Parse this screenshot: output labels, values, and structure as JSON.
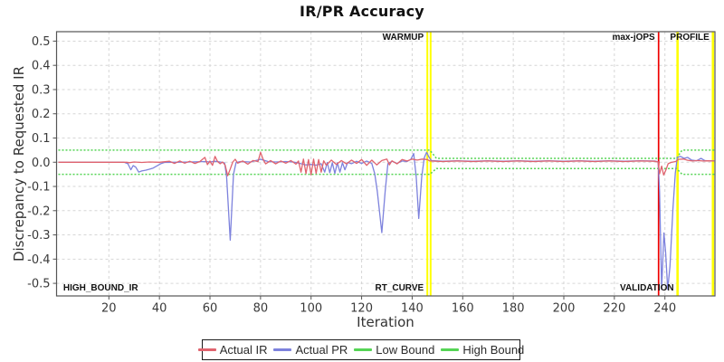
{
  "window": {
    "title": "IR/PR Accuracy"
  },
  "axes": {
    "x_title": "Iteration",
    "y_title": "Discrepancy to Requested IR",
    "x_ticks": [
      20,
      40,
      60,
      80,
      100,
      120,
      140,
      160,
      180,
      200,
      220,
      240
    ],
    "y_ticks": [
      "0.5",
      "0.4",
      "0.3",
      "0.2",
      "0.1",
      "0.0",
      "-0.1",
      "-0.2",
      "-0.3",
      "-0.4",
      "-0.5"
    ]
  },
  "legend": {
    "items": [
      {
        "label": "Actual IR",
        "color": "#e0636e"
      },
      {
        "label": "Actual PR",
        "color": "#7d82dd"
      },
      {
        "label": "Low Bound",
        "color": "#55d455"
      },
      {
        "label": "High Bound",
        "color": "#55d455"
      }
    ]
  },
  "colors": {
    "grid": "#d6d6d6",
    "plot_border": "#555555",
    "marker_yellow": "#ffff00",
    "marker_red": "#ee0000",
    "tick": "#555555"
  },
  "chart_data": {
    "type": "line",
    "title": "IR/PR Accuracy",
    "xlabel": "Iteration",
    "ylabel": "Discrepancy to Requested IR",
    "x_range": [
      -0.7,
      259.8
    ],
    "y_range": [
      -0.552,
      0.539
    ],
    "grid": true,
    "legend_position": "bottom",
    "markers": [
      {
        "name": "warmup-end-line-1",
        "x": 146.0,
        "color": "#ffff00",
        "width": 2.0
      },
      {
        "name": "warmup-end-line-2",
        "x": 147.3,
        "color": "#ffff00",
        "width": 2.0
      },
      {
        "name": "max-jops-line",
        "x": 237.5,
        "color": "#ee0000",
        "width": 1.7
      },
      {
        "name": "profile-start-line",
        "x": 245.0,
        "color": "#ffff00",
        "width": 2.6
      },
      {
        "name": "profile-end-line",
        "x": 259.0,
        "color": "#ffff00",
        "width": 2.6
      }
    ],
    "phases": {
      "top_labels": [
        {
          "text": "WARMUP",
          "x": 146.0,
          "anchor": "end"
        },
        {
          "text": "max-jOPS",
          "x": 237.5,
          "anchor": "end"
        },
        {
          "text": "PROFILE",
          "x": 259.0,
          "anchor": "end"
        }
      ],
      "bottom_labels": [
        {
          "text": "HIGH_BOUND_IR",
          "x": 0.5,
          "anchor": "start"
        },
        {
          "text": "RT_CURVE",
          "x": 146.0,
          "anchor": "end"
        },
        {
          "text": "VALIDATION",
          "x": 245.0,
          "anchor": "end"
        }
      ]
    },
    "series": [
      {
        "name": "High Bound",
        "color": "#55d455",
        "width": 1.5,
        "dash": "2 2",
        "points": [
          [
            0,
            0.05
          ],
          [
            147,
            0.05
          ],
          [
            149.6,
            0.016
          ],
          [
            244.6,
            0.016
          ],
          [
            246.8,
            0.05
          ],
          [
            259.8,
            0.05
          ]
        ]
      },
      {
        "name": "Low Bound",
        "color": "#55d455",
        "width": 1.5,
        "dash": "2 2",
        "points": [
          [
            0,
            -0.05
          ],
          [
            147,
            -0.05
          ],
          [
            149.6,
            -0.026
          ],
          [
            244.6,
            -0.026
          ],
          [
            246.8,
            -0.05
          ],
          [
            259.8,
            -0.05
          ]
        ]
      },
      {
        "name": "Actual PR",
        "color": "#7d82dd",
        "width": 1.3,
        "dash": null,
        "points": [
          [
            0,
            0
          ],
          [
            15,
            0
          ],
          [
            26,
            0
          ],
          [
            27.5,
            -0.006
          ],
          [
            28.7,
            -0.031
          ],
          [
            29.6,
            -0.014
          ],
          [
            30.6,
            -0.02
          ],
          [
            31.8,
            -0.041
          ],
          [
            33,
            -0.036
          ],
          [
            34.5,
            -0.033
          ],
          [
            36,
            -0.029
          ],
          [
            37.5,
            -0.024
          ],
          [
            39,
            -0.015
          ],
          [
            40.5,
            -0.006
          ],
          [
            42,
            -0.001
          ],
          [
            46,
            0
          ],
          [
            52,
            0.001
          ],
          [
            58,
            0.003
          ],
          [
            60,
            0.001
          ],
          [
            62,
            0.004
          ],
          [
            64,
            0.001
          ],
          [
            65.8,
            -0.003
          ],
          [
            66.6,
            -0.06
          ],
          [
            68,
            -0.322
          ],
          [
            69.3,
            -0.05
          ],
          [
            70.3,
            -0.002
          ],
          [
            72,
            0.003
          ],
          [
            76,
            0.001
          ],
          [
            80,
            0.012
          ],
          [
            83,
            0.003
          ],
          [
            86,
            0.001
          ],
          [
            90,
            0.003
          ],
          [
            93,
            0.001
          ],
          [
            96,
            -0.006
          ],
          [
            98,
            -0.011
          ],
          [
            100,
            -0.009
          ],
          [
            102,
            -0.012
          ],
          [
            104,
            -0.006
          ],
          [
            105.4,
            -0.041
          ],
          [
            106.4,
            -0.001
          ],
          [
            107.4,
            -0.043
          ],
          [
            108.4,
            -0.002
          ],
          [
            109.4,
            -0.046
          ],
          [
            110.4,
            -0.002
          ],
          [
            111.4,
            -0.041
          ],
          [
            112.4,
            -0.002
          ],
          [
            113.4,
            -0.031
          ],
          [
            114.5,
            -0.001
          ],
          [
            116,
            -0.006
          ],
          [
            118,
            0.004
          ],
          [
            120,
            -0.005
          ],
          [
            122,
            0.005
          ],
          [
            124,
            -0.005
          ],
          [
            125.2,
            -0.048
          ],
          [
            126.2,
            -0.12
          ],
          [
            128,
            -0.291
          ],
          [
            129.3,
            -0.12
          ],
          [
            130.4,
            -0.006
          ],
          [
            132,
            0.004
          ],
          [
            134,
            -0.005
          ],
          [
            136,
            0.005
          ],
          [
            138,
            0.003
          ],
          [
            139.5,
            0.012
          ],
          [
            140.6,
            0.036
          ],
          [
            141.6,
            -0.06
          ],
          [
            142.6,
            -0.232
          ],
          [
            143.8,
            -0.06
          ],
          [
            144.8,
            0.018
          ],
          [
            145.7,
            0.041
          ],
          [
            146.6,
            0.022
          ],
          [
            147.6,
            0.007
          ],
          [
            152,
            0.004
          ],
          [
            158,
            0.006
          ],
          [
            164,
            0.004
          ],
          [
            170,
            0.006
          ],
          [
            176,
            0.004
          ],
          [
            182,
            0.006
          ],
          [
            188,
            0.004
          ],
          [
            194,
            0.006
          ],
          [
            200,
            0.004
          ],
          [
            206,
            0.006
          ],
          [
            212,
            0.004
          ],
          [
            218,
            0.006
          ],
          [
            224,
            0.004
          ],
          [
            230,
            0.006
          ],
          [
            236,
            0.005
          ],
          [
            237.3,
            0.002
          ],
          [
            237.9,
            -0.12
          ],
          [
            238.7,
            -0.525
          ],
          [
            239.6,
            -0.292
          ],
          [
            240.3,
            -0.372
          ],
          [
            241.1,
            -0.525
          ],
          [
            242,
            -0.43
          ],
          [
            243.2,
            -0.19
          ],
          [
            244.1,
            -0.045
          ],
          [
            244.9,
            0.02
          ],
          [
            246.2,
            0.024
          ],
          [
            247.6,
            0.016
          ],
          [
            249,
            0.02
          ],
          [
            250.6,
            0.009
          ],
          [
            252.5,
            0.006
          ],
          [
            254.3,
            0.016
          ],
          [
            255.8,
            0.007
          ],
          [
            257.5,
            0.005
          ],
          [
            259.5,
            0.006
          ]
        ]
      },
      {
        "name": "Actual IR",
        "color": "#e0636e",
        "width": 1.3,
        "dash": null,
        "points": [
          [
            0,
            0
          ],
          [
            15,
            0
          ],
          [
            27,
            0
          ],
          [
            28,
            -0.002
          ],
          [
            30,
            0.001
          ],
          [
            33,
            -0.001
          ],
          [
            36,
            0.001
          ],
          [
            40,
            0
          ],
          [
            44,
            0.004
          ],
          [
            46,
            -0.005
          ],
          [
            48,
            0.005
          ],
          [
            50,
            -0.004
          ],
          [
            52,
            0.004
          ],
          [
            54,
            -0.005
          ],
          [
            56,
            0.003
          ],
          [
            58,
            0.02
          ],
          [
            59,
            -0.01
          ],
          [
            60,
            0.005
          ],
          [
            61,
            -0.013
          ],
          [
            62,
            0.024
          ],
          [
            63,
            0.003
          ],
          [
            64,
            -0.006
          ],
          [
            65,
            0.001
          ],
          [
            66,
            -0.012
          ],
          [
            67,
            -0.056
          ],
          [
            68,
            -0.028
          ],
          [
            69,
            0.001
          ],
          [
            70,
            0.012
          ],
          [
            71,
            -0.004
          ],
          [
            73,
            0.005
          ],
          [
            75,
            -0.008
          ],
          [
            77,
            0.007
          ],
          [
            79,
            0.003
          ],
          [
            80,
            0.041
          ],
          [
            81,
            0.012
          ],
          [
            82,
            -0.007
          ],
          [
            84,
            0.007
          ],
          [
            86,
            -0.007
          ],
          [
            88,
            0.005
          ],
          [
            90,
            -0.004
          ],
          [
            92,
            0.007
          ],
          [
            94,
            -0.008
          ],
          [
            95,
            0.005
          ],
          [
            96,
            -0.041
          ],
          [
            97,
            0.013
          ],
          [
            98,
            -0.047
          ],
          [
            99,
            0.011
          ],
          [
            100,
            -0.052
          ],
          [
            101,
            0.013
          ],
          [
            102,
            -0.046
          ],
          [
            103,
            0.011
          ],
          [
            104,
            -0.041
          ],
          [
            105,
            0.006
          ],
          [
            106,
            -0.012
          ],
          [
            108,
            0.009
          ],
          [
            110,
            -0.009
          ],
          [
            112,
            0.007
          ],
          [
            114,
            -0.007
          ],
          [
            116,
            0.009
          ],
          [
            118,
            -0.005
          ],
          [
            120,
            0.011
          ],
          [
            122,
            -0.013
          ],
          [
            124,
            0.009
          ],
          [
            126,
            -0.011
          ],
          [
            128,
            0.007
          ],
          [
            130,
            0.013
          ],
          [
            131,
            -0.011
          ],
          [
            132,
            0.006
          ],
          [
            134,
            -0.007
          ],
          [
            136,
            0.011
          ],
          [
            138,
            0.005
          ],
          [
            140,
            0.013
          ],
          [
            142,
            0.009
          ],
          [
            144,
            0.013
          ],
          [
            146,
            0.011
          ],
          [
            147,
            0.005
          ],
          [
            152,
            0.003
          ],
          [
            158,
            0.005
          ],
          [
            164,
            0.003
          ],
          [
            170,
            0.005
          ],
          [
            176,
            0.003
          ],
          [
            182,
            0.005
          ],
          [
            188,
            0.003
          ],
          [
            194,
            0.005
          ],
          [
            200,
            0.003
          ],
          [
            206,
            0.005
          ],
          [
            212,
            0.003
          ],
          [
            218,
            0.005
          ],
          [
            224,
            0.003
          ],
          [
            230,
            0.005
          ],
          [
            236,
            0.004
          ],
          [
            237.3,
            0.001
          ],
          [
            237.9,
            -0.048
          ],
          [
            238.7,
            -0.016
          ],
          [
            239.5,
            -0.053
          ],
          [
            240.4,
            -0.032
          ],
          [
            241.3,
            -0.006
          ],
          [
            242.4,
            -0.001
          ],
          [
            244.2,
            0.003
          ],
          [
            245.5,
            0.012
          ],
          [
            247.5,
            0.013
          ],
          [
            249,
            0.008
          ],
          [
            251,
            0.005
          ],
          [
            253,
            0.007
          ],
          [
            255,
            0.005
          ],
          [
            257,
            0.006
          ],
          [
            259.5,
            0.005
          ]
        ]
      }
    ]
  }
}
